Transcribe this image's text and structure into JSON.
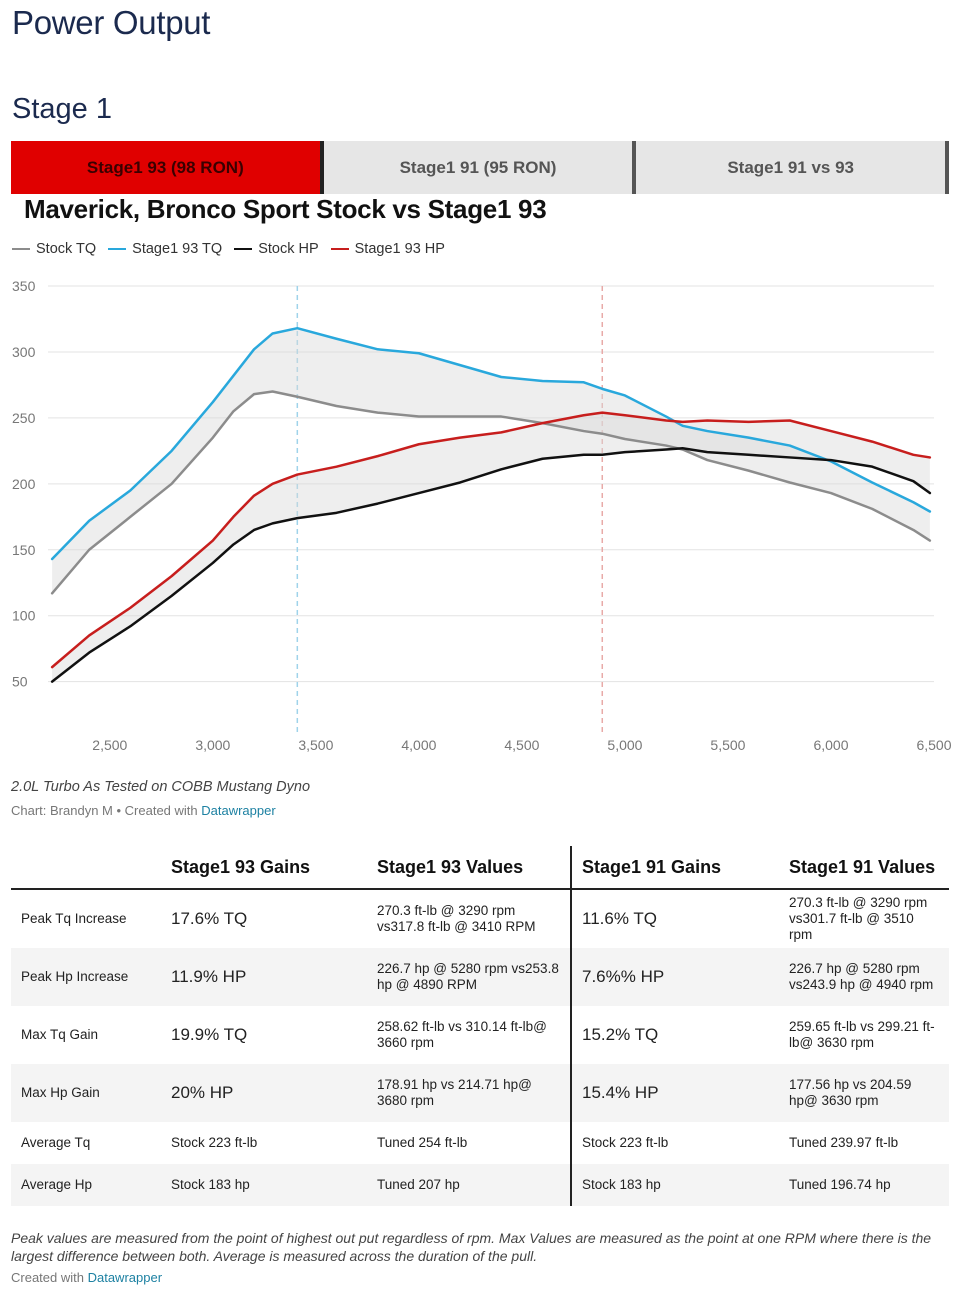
{
  "page_title": "Power Output",
  "section_title": "Stage 1",
  "tabs": [
    {
      "label": "Stage1 93 (98 RON)",
      "active": true
    },
    {
      "label": "Stage1 91 (95 RON)",
      "active": false
    },
    {
      "label": "Stage1 91 vs 93",
      "active": false
    }
  ],
  "colors": {
    "stock_tq": "#8c8c8c",
    "stage1_tq": "#29a8dc",
    "stock_hp": "#111111",
    "stage1_hp": "#c71e1d",
    "tab_active": "#e00000",
    "link": "#1d81a2"
  },
  "chart_data": {
    "type": "line",
    "title": "Maverick, Bronco Sport Stock vs Stage1 93",
    "xlabel": "",
    "ylabel": "",
    "xlim": [
      2200,
      6500
    ],
    "ylim": [
      30,
      350
    ],
    "x_ticks": [
      2500,
      3000,
      3500,
      4000,
      4500,
      5000,
      5500,
      6000,
      6500
    ],
    "x_tick_labels": [
      "2,500",
      "3,000",
      "3,500",
      "4,000",
      "4,500",
      "5,000",
      "5,500",
      "6,000",
      "6,500"
    ],
    "y_ticks": [
      50,
      100,
      150,
      200,
      250,
      300,
      350
    ],
    "y_tick_labels": [
      "50",
      "100",
      "150",
      "200",
      "250",
      "300",
      "350"
    ],
    "grid": true,
    "legend_position": "top-left",
    "reference_lines": [
      3410,
      4890
    ],
    "x": [
      2220,
      2400,
      2600,
      2800,
      3000,
      3100,
      3200,
      3290,
      3410,
      3600,
      3800,
      4000,
      4200,
      4400,
      4600,
      4800,
      4890,
      5000,
      5200,
      5280,
      5400,
      5600,
      5800,
      6000,
      6200,
      6400,
      6480
    ],
    "series": [
      {
        "name": "Stock TQ",
        "values": [
          117,
          150,
          175,
          200,
          235,
          255,
          268,
          270,
          266,
          259,
          254,
          251,
          251,
          251,
          246,
          240,
          238,
          234,
          229,
          226,
          218,
          210,
          201,
          193,
          181,
          165,
          157
        ]
      },
      {
        "name": "Stage1 93 TQ",
        "values": [
          143,
          172,
          195,
          225,
          262,
          282,
          302,
          314,
          318,
          310,
          302,
          299,
          290,
          281,
          278,
          277,
          272,
          267,
          251,
          244,
          240,
          235,
          229,
          217,
          201,
          186,
          179
        ]
      },
      {
        "name": "Stock HP",
        "values": [
          50,
          72,
          92,
          115,
          140,
          154,
          165,
          170,
          174,
          178,
          185,
          193,
          201,
          211,
          219,
          222,
          222,
          224,
          226,
          227,
          224,
          222,
          220,
          218,
          213,
          202,
          193
        ]
      },
      {
        "name": "Stage1 93 HP",
        "values": [
          61,
          85,
          106,
          130,
          157,
          175,
          191,
          200,
          207,
          213,
          221,
          230,
          235,
          239,
          246,
          252,
          254,
          252,
          248,
          247,
          248,
          247,
          248,
          240,
          232,
          222,
          220
        ]
      }
    ]
  },
  "note": "2.0L Turbo As Tested on COBB Mustang Dyno",
  "credit_prefix": "Chart: Brandyn M • Created with ",
  "credit_link": "Datawrapper",
  "table": {
    "headers": [
      "",
      "Stage1 93 Gains",
      "Stage1 93 Values",
      "Stage1 91 Gains",
      "Stage1 91 Values"
    ],
    "rows": [
      {
        "label": "Peak Tq Increase",
        "g93": "17.6% TQ",
        "v93": "270.3 ft-lb @ 3290 rpm vs317.8 ft-lb @ 3410 RPM",
        "g91": "11.6% TQ",
        "v91": "270.3 ft-lb @ 3290 rpm vs301.7 ft-lb @ 3510 rpm"
      },
      {
        "label": "Peak Hp Increase",
        "g93": "11.9% HP",
        "v93": "226.7 hp @ 5280 rpm vs253.8 hp @ 4890 RPM",
        "g91": "7.6%% HP",
        "v91": "226.7 hp @ 5280 rpm vs243.9 hp @ 4940 rpm"
      },
      {
        "label": "Max Tq Gain",
        "g93": "19.9% TQ",
        "v93": "258.62 ft-lb vs 310.14 ft-lb@ 3660 rpm",
        "g91": "15.2% TQ",
        "v91": "259.65 ft-lb vs 299.21 ft-lb@ 3630 rpm"
      },
      {
        "label": "Max Hp Gain",
        "g93": "20% HP",
        "v93": "178.91 hp vs 214.71 hp@ 3680 rpm",
        "g91": "15.4% HP",
        "v91": "177.56 hp vs 204.59 hp@ 3630 rpm"
      },
      {
        "label": "Average Tq",
        "g93": "Stock 223 ft-lb",
        "v93": "Tuned 254 ft-lb",
        "g91": "Stock 223 ft-lb",
        "v91": "Tuned 239.97 ft-lb"
      },
      {
        "label": "Average Hp",
        "g93": "Stock 183 hp",
        "v93": "Tuned 207 hp",
        "g91": "Stock 183 hp",
        "v91": "Tuned 196.74 hp"
      }
    ]
  },
  "footnote": "Peak values are measured from the point of highest out put regardless of rpm. Max Values are measured as the point at one RPM where there is the largest difference between both. Average is measured across the duration of the pull.",
  "footer_prefix": "Created with ",
  "footer_link": "Datawrapper"
}
